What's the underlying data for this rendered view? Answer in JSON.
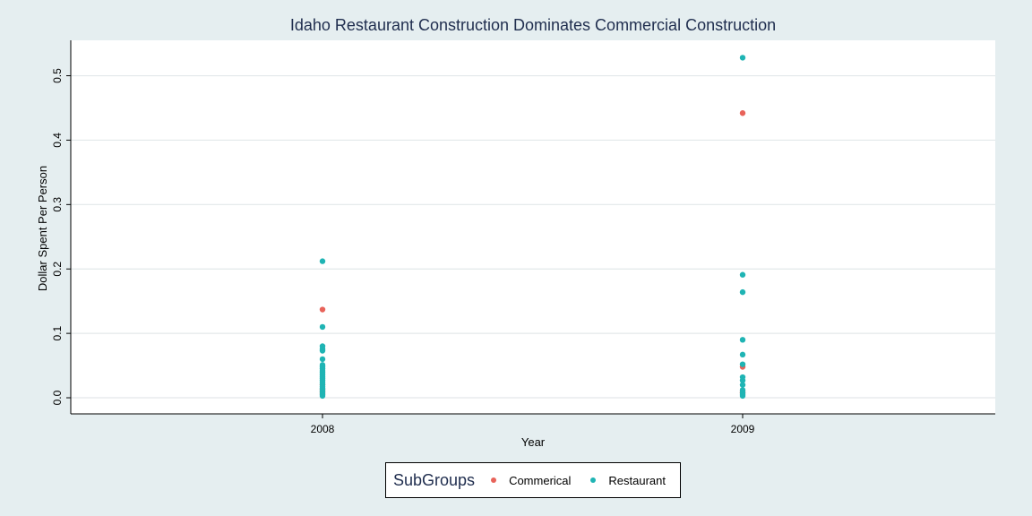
{
  "chart_data": {
    "type": "scatter",
    "title": "Idaho Restaurant Construction Dominates Commercial Construction",
    "xlabel": "Year",
    "ylabel": "Dollar Spent Per Person",
    "categories": [
      "2008",
      "2009"
    ],
    "ylim": [
      -0.025,
      0.555
    ],
    "yticks": [
      "0.0",
      "0.1",
      "0.2",
      "0.3",
      "0.4",
      "0.5"
    ],
    "grid": true,
    "legend_position": "bottom",
    "legend_title": "SubGroups",
    "series": [
      {
        "name": "Commerical",
        "color": "#e8635a",
        "points": [
          {
            "x": "2008",
            "y": 0.137
          },
          {
            "x": "2008",
            "y": 0.02
          },
          {
            "x": "2008",
            "y": 0.013
          },
          {
            "x": "2008",
            "y": 0.009
          },
          {
            "x": "2008",
            "y": 0.006
          },
          {
            "x": "2009",
            "y": 0.442
          },
          {
            "x": "2009",
            "y": 0.048
          },
          {
            "x": "2009",
            "y": 0.01
          },
          {
            "x": "2009",
            "y": 0.007
          }
        ]
      },
      {
        "name": "Restaurant",
        "color": "#1fb4b4",
        "points": [
          {
            "x": "2008",
            "y": 0.212
          },
          {
            "x": "2008",
            "y": 0.11
          },
          {
            "x": "2008",
            "y": 0.08
          },
          {
            "x": "2008",
            "y": 0.076
          },
          {
            "x": "2008",
            "y": 0.073
          },
          {
            "x": "2008",
            "y": 0.06
          },
          {
            "x": "2008",
            "y": 0.051
          },
          {
            "x": "2008",
            "y": 0.048
          },
          {
            "x": "2008",
            "y": 0.045
          },
          {
            "x": "2008",
            "y": 0.042
          },
          {
            "x": "2008",
            "y": 0.039
          },
          {
            "x": "2008",
            "y": 0.036
          },
          {
            "x": "2008",
            "y": 0.033
          },
          {
            "x": "2008",
            "y": 0.03
          },
          {
            "x": "2008",
            "y": 0.027
          },
          {
            "x": "2008",
            "y": 0.024
          },
          {
            "x": "2008",
            "y": 0.021
          },
          {
            "x": "2008",
            "y": 0.017
          },
          {
            "x": "2008",
            "y": 0.014
          },
          {
            "x": "2008",
            "y": 0.011
          },
          {
            "x": "2008",
            "y": 0.008
          },
          {
            "x": "2008",
            "y": 0.005
          },
          {
            "x": "2008",
            "y": 0.003
          },
          {
            "x": "2009",
            "y": 0.528
          },
          {
            "x": "2009",
            "y": 0.191
          },
          {
            "x": "2009",
            "y": 0.164
          },
          {
            "x": "2009",
            "y": 0.09
          },
          {
            "x": "2009",
            "y": 0.067
          },
          {
            "x": "2009",
            "y": 0.052
          },
          {
            "x": "2009",
            "y": 0.032
          },
          {
            "x": "2009",
            "y": 0.027
          },
          {
            "x": "2009",
            "y": 0.02
          },
          {
            "x": "2009",
            "y": 0.012
          },
          {
            "x": "2009",
            "y": 0.008
          },
          {
            "x": "2009",
            "y": 0.005
          },
          {
            "x": "2009",
            "y": 0.003
          }
        ]
      }
    ]
  }
}
